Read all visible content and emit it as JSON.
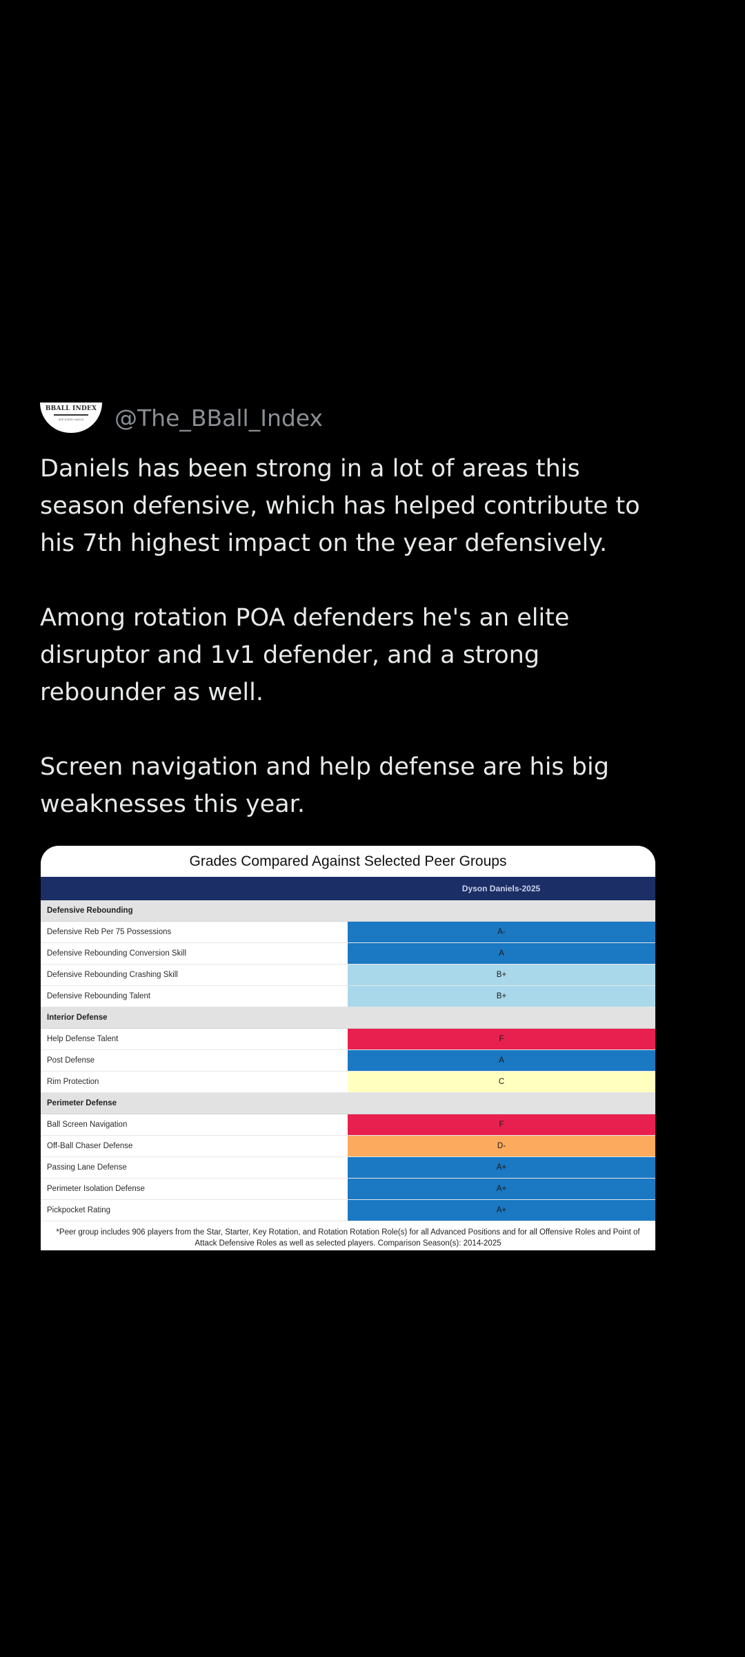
{
  "post": {
    "avatar": {
      "name": "BBALL INDEX",
      "tagline": "SEE EVERY ANGLE"
    },
    "handle": "@The_BBall_Index",
    "paragraphs": [
      "Daniels has been strong in a lot of areas this season defensive, which has helped contribute to his 7th highest impact on the year defensively.",
      "Among rotation POA defenders he's an elite disruptor and 1v1 defender, and a strong rebounder as well.",
      "Screen navigation and help defense are his big weaknesses this year."
    ]
  },
  "card": {
    "title": "Grades Compared Against Selected Peer Groups",
    "player": "Dyson Daniels-2025",
    "sections": [
      {
        "name": "Defensive Rebounding",
        "rows": [
          {
            "label": "Defensive Reb Per 75 Possessions",
            "grade": "A-",
            "color": "#1b78c2"
          },
          {
            "label": "Defensive Rebounding Conversion Skill",
            "grade": "A",
            "color": "#1b78c2"
          },
          {
            "label": "Defensive Rebounding Crashing Skill",
            "grade": "B+",
            "color": "#a9d8ea"
          },
          {
            "label": "Defensive Rebounding Talent",
            "grade": "B+",
            "color": "#a9d8ea"
          }
        ]
      },
      {
        "name": "Interior Defense",
        "rows": [
          {
            "label": "Help Defense Talent",
            "grade": "F",
            "color": "#e8204f"
          },
          {
            "label": "Post Defense",
            "grade": "A",
            "color": "#1b78c2"
          },
          {
            "label": "Rim Protection",
            "grade": "C",
            "color": "#ffffc0"
          }
        ]
      },
      {
        "name": "Perimeter Defense",
        "rows": [
          {
            "label": "Ball Screen Navigation",
            "grade": "F",
            "color": "#e8204f"
          },
          {
            "label": "Off-Ball Chaser Defense",
            "grade": "D-",
            "color": "#fcaa5e"
          },
          {
            "label": "Passing Lane Defense",
            "grade": "A+",
            "color": "#1b78c2"
          },
          {
            "label": "Perimeter Isolation Defense",
            "grade": "A+",
            "color": "#1b78c2"
          },
          {
            "label": "Pickpocket Rating",
            "grade": "A+",
            "color": "#1b78c2"
          }
        ]
      }
    ],
    "footnote": "*Peer group includes 906 players from the Star, Starter, Key Rotation, and Rotation Rotation Role(s) for all Advanced Positions and for all Offensive Roles and Point of Attack Defensive Roles as well as selected players. Comparison Season(s): 2014-2025"
  },
  "colors": {
    "background": "#000000",
    "text": "#e7e9ea",
    "handle": "#8b8f94",
    "header_band": "#1b2e66"
  }
}
